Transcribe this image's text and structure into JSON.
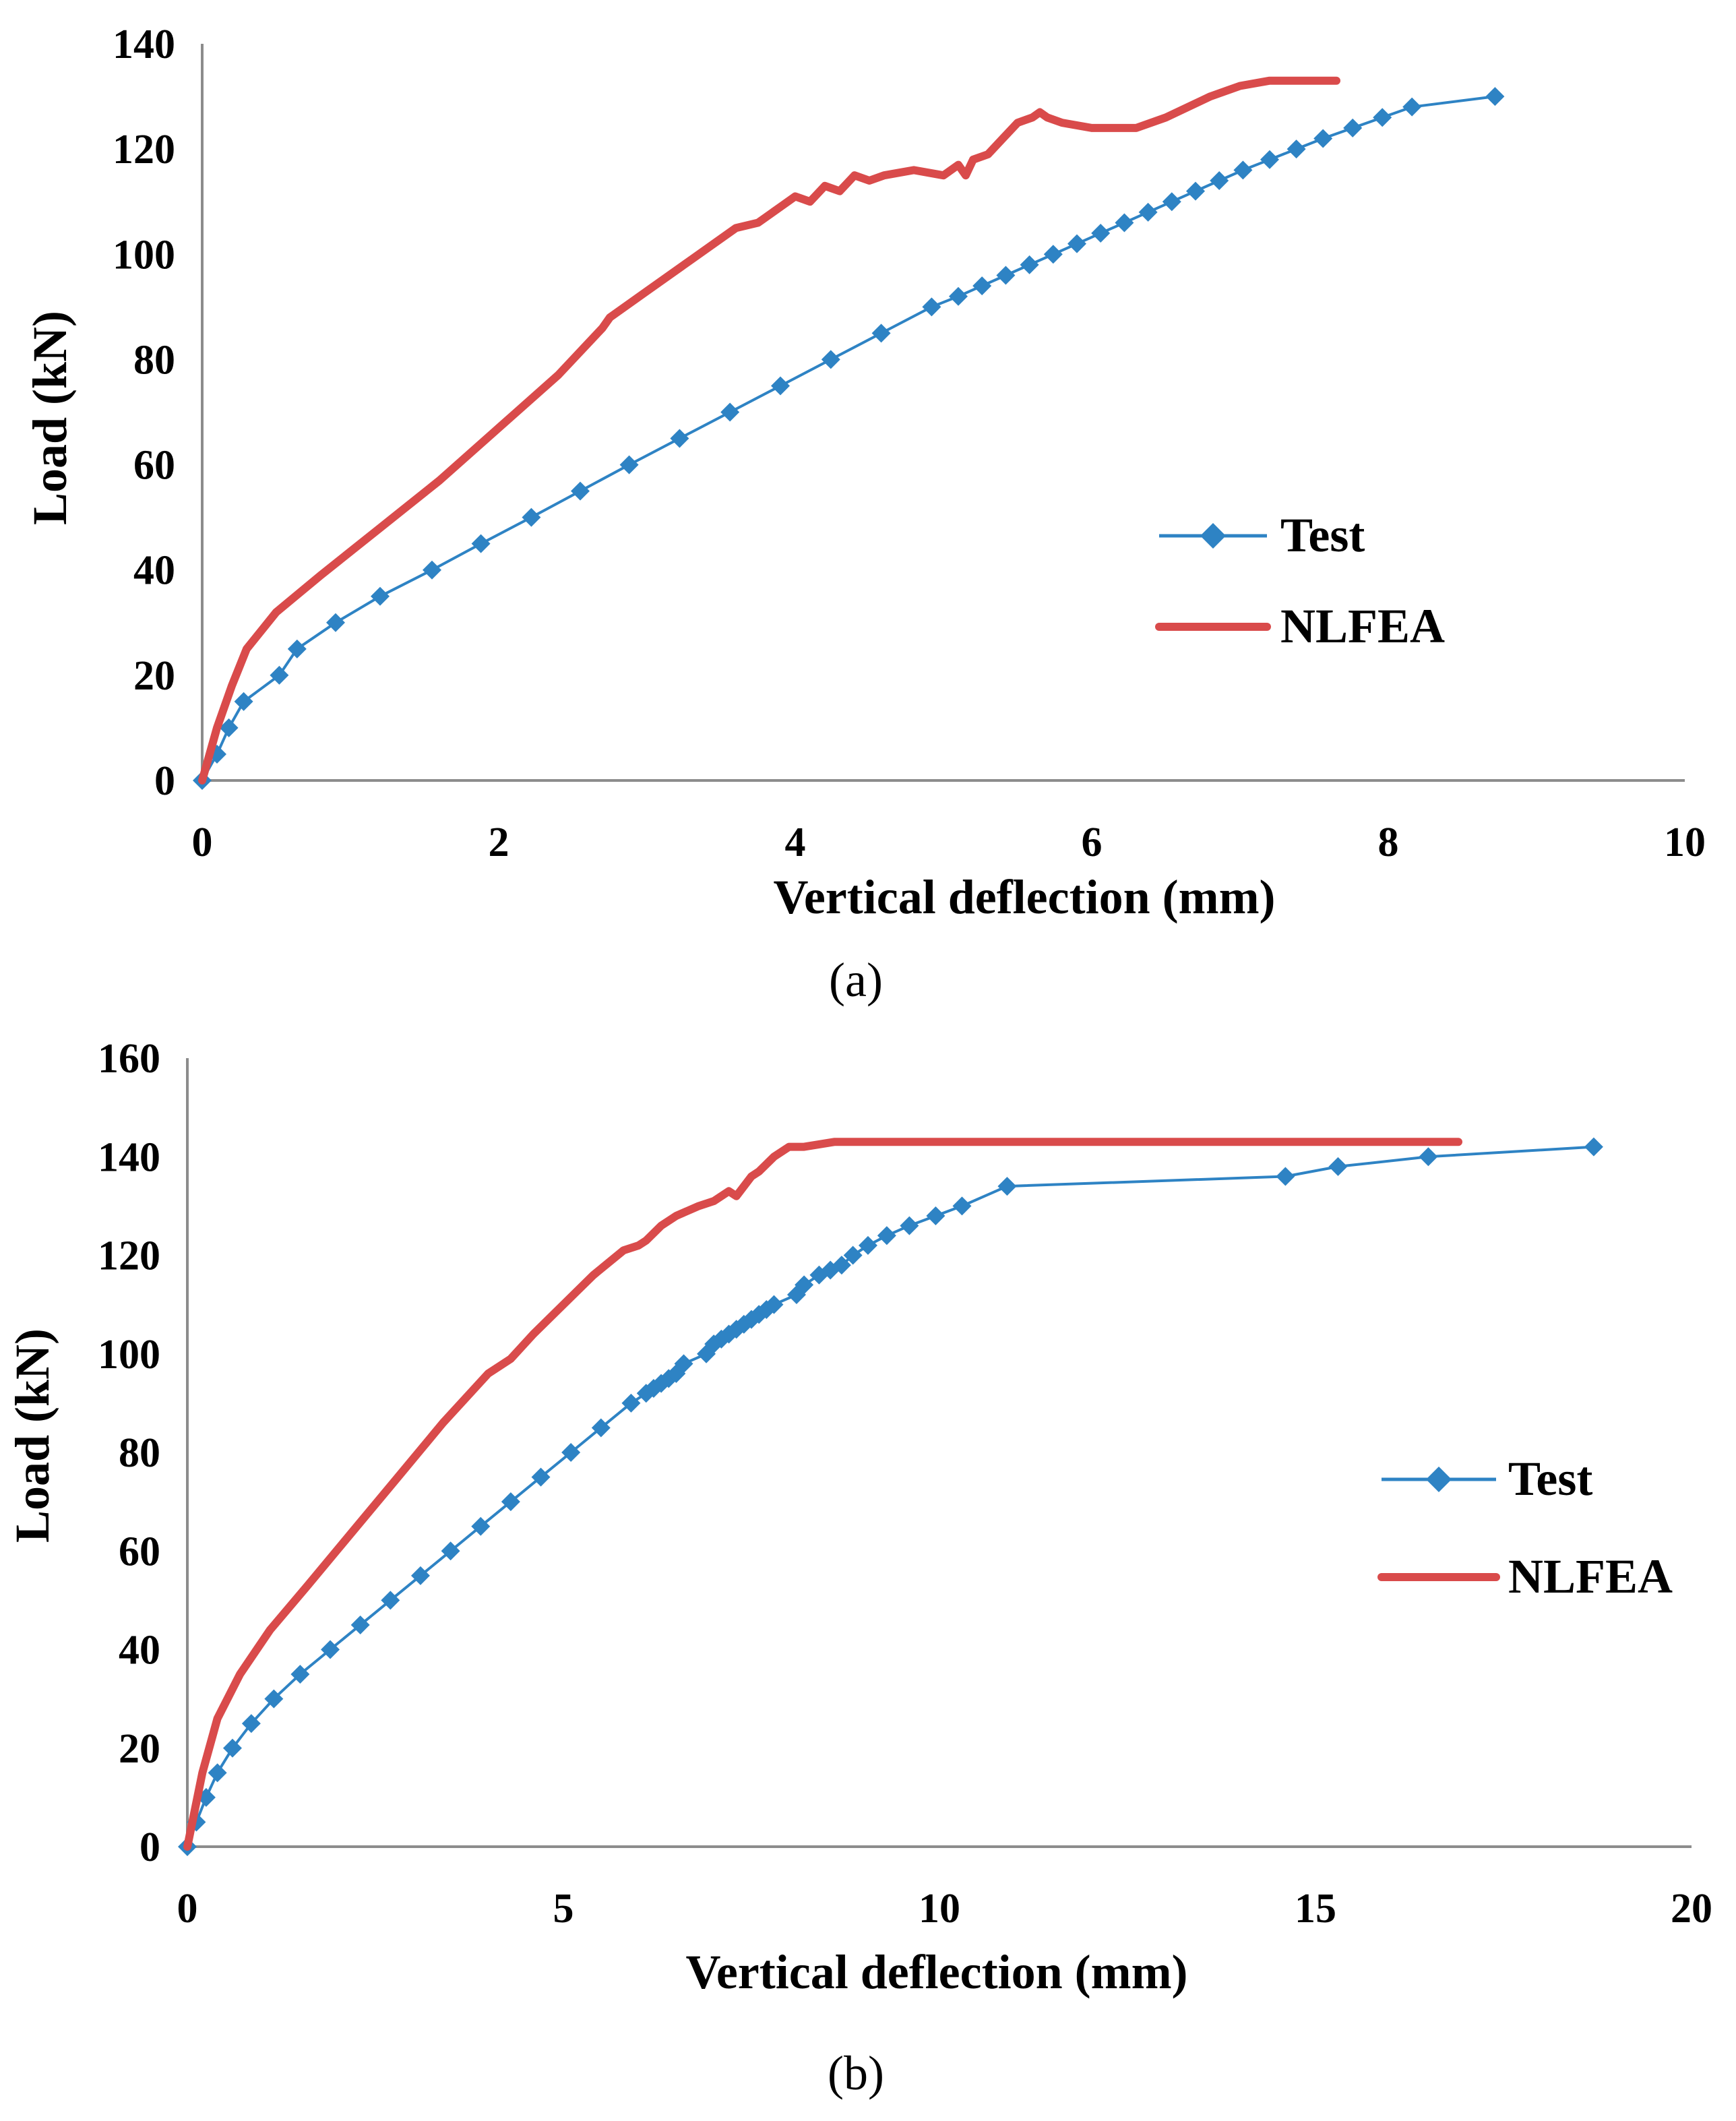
{
  "colors": {
    "test": "#2e83c4",
    "nlfea": "#d94b4b",
    "axis": "#8c8c8c"
  },
  "chart_data": [
    {
      "type": "line",
      "caption": "(a)",
      "xlabel": "Vertical deflection (mm)",
      "ylabel": "Load (kN)",
      "xlim": [
        0,
        10
      ],
      "ylim": [
        0,
        140
      ],
      "xticks": [
        0,
        2,
        4,
        6,
        8,
        10
      ],
      "yticks": [
        0,
        20,
        40,
        60,
        80,
        100,
        120,
        140
      ],
      "legend": "right",
      "grid": false,
      "series": [
        {
          "name": "Test",
          "marker": "diamond",
          "x": [
            0,
            0.1,
            0.18,
            0.28,
            0.52,
            0.64,
            0.9,
            1.2,
            1.55,
            1.88,
            2.22,
            2.55,
            2.88,
            3.22,
            3.56,
            3.9,
            4.24,
            4.58,
            4.92,
            5.1,
            5.26,
            5.42,
            5.58,
            5.74,
            5.9,
            6.06,
            6.22,
            6.38,
            6.54,
            6.7,
            6.86,
            7.02,
            7.2,
            7.38,
            7.56,
            7.76,
            7.96,
            8.16,
            8.72
          ],
          "y": [
            0,
            5,
            10,
            15,
            20,
            25,
            30,
            35,
            40,
            45,
            50,
            55,
            60,
            65,
            70,
            75,
            80,
            85,
            90,
            92,
            94,
            96,
            98,
            100,
            102,
            104,
            106,
            108,
            110,
            112,
            114,
            116,
            118,
            120,
            122,
            124,
            126,
            128,
            130
          ]
        },
        {
          "name": "NLFEA",
          "marker": "none",
          "x": [
            0,
            0.1,
            0.2,
            0.3,
            0.5,
            0.8,
            1.2,
            1.6,
            2.0,
            2.4,
            2.7,
            2.75,
            3.0,
            3.3,
            3.6,
            3.75,
            3.8,
            3.9,
            4.0,
            4.1,
            4.2,
            4.3,
            4.4,
            4.5,
            4.6,
            4.8,
            5.0,
            5.1,
            5.15,
            5.2,
            5.3,
            5.4,
            5.5,
            5.6,
            5.65,
            5.7,
            5.8,
            6.0,
            6.3,
            6.5,
            6.8,
            7.0,
            7.2,
            7.5,
            7.65
          ],
          "y": [
            0,
            10,
            18,
            25,
            32,
            39,
            48,
            57,
            67,
            77,
            86,
            88,
            93,
            99,
            105,
            106,
            107,
            109,
            111,
            110,
            113,
            112,
            115,
            114,
            115,
            116,
            115,
            117,
            115,
            118,
            119,
            122,
            125,
            126,
            127,
            126,
            125,
            124,
            124,
            126,
            130,
            132,
            133,
            133,
            133
          ]
        }
      ]
    },
    {
      "type": "line",
      "caption": "(b)",
      "xlabel": "Vertical deflection (mm)",
      "ylabel": "Load (kN)",
      "xlim": [
        0,
        20
      ],
      "ylim": [
        0,
        160
      ],
      "xticks": [
        0,
        5,
        10,
        15,
        20
      ],
      "yticks": [
        0,
        20,
        40,
        60,
        80,
        100,
        120,
        140,
        160
      ],
      "legend": "right",
      "grid": false,
      "series": [
        {
          "name": "Test",
          "marker": "diamond",
          "x": [
            0,
            0.12,
            0.25,
            0.4,
            0.6,
            0.85,
            1.15,
            1.5,
            1.9,
            2.3,
            2.7,
            3.1,
            3.5,
            3.9,
            4.3,
            4.7,
            5.1,
            5.5,
            5.9,
            6.1,
            6.2,
            6.3,
            6.4,
            6.5,
            6.6,
            6.9,
            7.0,
            7.1,
            7.2,
            7.3,
            7.4,
            7.5,
            7.6,
            7.7,
            7.8,
            8.1,
            8.2,
            8.4,
            8.55,
            8.7,
            8.85,
            9.05,
            9.3,
            9.6,
            9.95,
            10.3,
            10.9,
            14.6,
            15.3,
            16.5,
            18.7
          ],
          "y": [
            0,
            5,
            10,
            15,
            20,
            25,
            30,
            35,
            40,
            45,
            50,
            55,
            60,
            65,
            70,
            75,
            80,
            85,
            90,
            92,
            93,
            94,
            95,
            96,
            98,
            100,
            102,
            103,
            104,
            105,
            106,
            107,
            108,
            109,
            110,
            112,
            114,
            116,
            117,
            118,
            120,
            122,
            124,
            126,
            128,
            130,
            134,
            136,
            138,
            140,
            142
          ]
        },
        {
          "name": "NLFEA",
          "marker": "none",
          "x": [
            0,
            0.2,
            0.4,
            0.7,
            1.1,
            1.6,
            2.2,
            2.8,
            3.4,
            4.0,
            4.3,
            4.6,
            5.0,
            5.4,
            5.8,
            6.0,
            6.1,
            6.3,
            6.5,
            6.8,
            7.0,
            7.2,
            7.3,
            7.5,
            7.6,
            7.8,
            8.0,
            8.2,
            8.6,
            10,
            12,
            14,
            16,
            16.9
          ],
          "y": [
            0,
            15,
            26,
            35,
            44,
            53,
            64,
            75,
            86,
            96,
            99,
            104,
            110,
            116,
            121,
            122,
            123,
            126,
            128,
            130,
            131,
            133,
            132,
            136,
            137,
            140,
            142,
            142,
            143,
            143,
            143,
            143,
            143,
            143
          ]
        }
      ]
    }
  ]
}
